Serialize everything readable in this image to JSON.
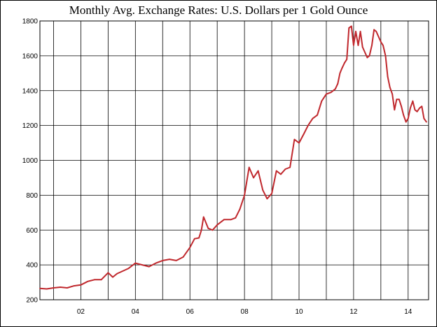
{
  "chart_data": {
    "type": "line",
    "title": "Monthly Avg. Exchange Rates: U.S. Dollars per 1 Gold Ounce",
    "xlabel": "",
    "ylabel": "",
    "xlim": [
      2000.5,
      2014.75
    ],
    "ylim": [
      200,
      1800
    ],
    "yticks": [
      200,
      400,
      600,
      800,
      1000,
      1200,
      1400,
      1600,
      1800
    ],
    "xticks": [
      {
        "label": "02",
        "value": 2002
      },
      {
        "label": "04",
        "value": 2004
      },
      {
        "label": "06",
        "value": 2006
      },
      {
        "label": "08",
        "value": 2008
      },
      {
        "label": "10",
        "value": 2010
      },
      {
        "label": "12",
        "value": 2012
      },
      {
        "label": "14",
        "value": 2014
      }
    ],
    "x_gridlines": [
      2001,
      2002,
      2003,
      2004,
      2005,
      2006,
      2007,
      2008,
      2009,
      2010,
      2011,
      2012,
      2013,
      2014
    ],
    "grid": true,
    "series_color": "#c0282d",
    "series": [
      {
        "name": "",
        "x": [
          2000.5,
          2000.75,
          2001.0,
          2001.25,
          2001.5,
          2001.75,
          2002.0,
          2002.25,
          2002.5,
          2002.75,
          2003.0,
          2003.17,
          2003.33,
          2003.5,
          2003.75,
          2004.0,
          2004.25,
          2004.5,
          2004.75,
          2005.0,
          2005.25,
          2005.5,
          2005.75,
          2006.0,
          2006.17,
          2006.33,
          2006.42,
          2006.5,
          2006.67,
          2006.83,
          2007.0,
          2007.25,
          2007.5,
          2007.67,
          2007.83,
          2008.0,
          2008.17,
          2008.33,
          2008.5,
          2008.67,
          2008.83,
          2009.0,
          2009.17,
          2009.33,
          2009.5,
          2009.67,
          2009.83,
          2010.0,
          2010.17,
          2010.33,
          2010.5,
          2010.67,
          2010.83,
          2011.0,
          2011.17,
          2011.33,
          2011.42,
          2011.5,
          2011.58,
          2011.67,
          2011.75,
          2011.83,
          2011.92,
          2012.0,
          2012.08,
          2012.17,
          2012.25,
          2012.33,
          2012.5,
          2012.58,
          2012.67,
          2012.75,
          2012.83,
          2013.0,
          2013.08,
          2013.17,
          2013.25,
          2013.33,
          2013.42,
          2013.5,
          2013.58,
          2013.67,
          2013.75,
          2013.83,
          2013.92,
          2014.0,
          2014.08,
          2014.17,
          2014.25,
          2014.33,
          2014.42,
          2014.5,
          2014.58,
          2014.67
        ],
        "y": [
          265,
          262,
          268,
          272,
          268,
          280,
          285,
          305,
          315,
          315,
          355,
          330,
          350,
          362,
          380,
          410,
          400,
          390,
          410,
          425,
          432,
          425,
          445,
          500,
          550,
          555,
          600,
          675,
          610,
          600,
          630,
          660,
          660,
          670,
          720,
          800,
          960,
          900,
          940,
          830,
          780,
          810,
          940,
          920,
          950,
          960,
          1120,
          1100,
          1150,
          1200,
          1240,
          1260,
          1340,
          1380,
          1390,
          1410,
          1440,
          1500,
          1530,
          1560,
          1580,
          1760,
          1770,
          1660,
          1740,
          1660,
          1740,
          1650,
          1590,
          1600,
          1660,
          1750,
          1740,
          1680,
          1660,
          1600,
          1480,
          1420,
          1380,
          1290,
          1350,
          1350,
          1310,
          1260,
          1220,
          1240,
          1300,
          1340,
          1290,
          1280,
          1300,
          1310,
          1240,
          1220
        ]
      }
    ]
  }
}
